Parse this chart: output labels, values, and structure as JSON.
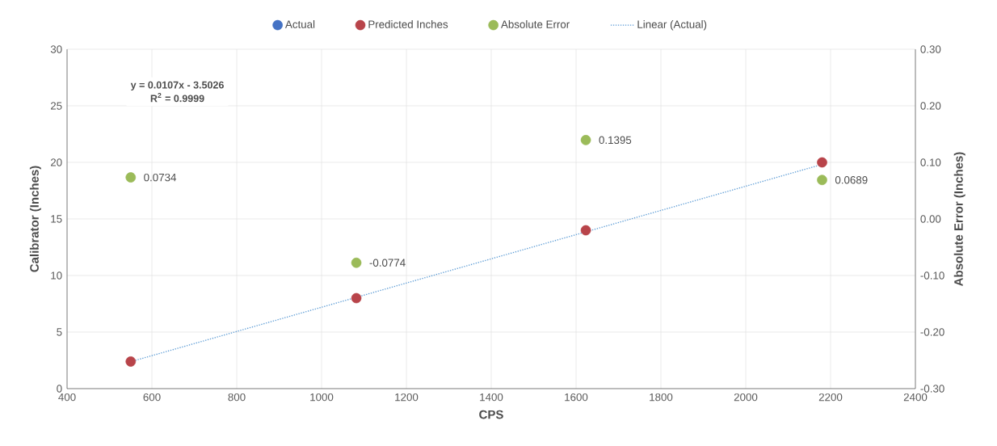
{
  "chart_data": {
    "type": "scatter",
    "xlabel": "CPS",
    "ylabel": "Calibrator (Inches)",
    "y2label": "Absolute Error (Inches)",
    "x": [
      550,
      1082,
      1623,
      2180
    ],
    "series": [
      {
        "name": "Actual",
        "color": "#4472c4",
        "marker": "circle",
        "values": [
          null,
          null,
          null,
          null
        ]
      },
      {
        "name": "Predicted Inches",
        "color": "#b8444a",
        "marker": "circle",
        "values": [
          2.4,
          8.0,
          14.0,
          20.0
        ]
      },
      {
        "name": "Absolute Error",
        "color": "#9bbb59",
        "marker": "circle",
        "axis": "y2",
        "values": [
          0.0734,
          -0.0774,
          0.1395,
          0.0689
        ],
        "value_labels": [
          "0.0734",
          "-0.0774",
          "0.1395",
          "0.0689"
        ]
      },
      {
        "name": "Linear (Actual)",
        "type": "line",
        "color": "#5b9bd5",
        "line_style": "dotted",
        "marker": "none",
        "x": [
          550,
          2180
        ],
        "values": [
          2.38,
          19.82
        ]
      }
    ],
    "annotations": [
      "y = 0.0107x - 3.5026",
      "R$^{2}$ = 0.9999"
    ],
    "xlim": [
      400,
      2400
    ],
    "xticks": [
      400,
      600,
      800,
      1000,
      1200,
      1400,
      1600,
      1800,
      2000,
      2200,
      2400
    ],
    "ylim": [
      0,
      30
    ],
    "yticks": [
      0,
      5,
      10,
      15,
      20,
      25,
      30
    ],
    "y2lim": [
      -0.3,
      0.3
    ],
    "y2ticks": [
      {
        "value": -0.3,
        "label": "-0.30"
      },
      {
        "value": -0.2,
        "label": "-0.20"
      },
      {
        "value": -0.1,
        "label": "-0.10"
      },
      {
        "value": 0,
        "label": "0.00"
      },
      {
        "value": 0.1,
        "label": "0.10"
      },
      {
        "value": 0.2,
        "label": "0.20"
      },
      {
        "value": 0.3,
        "label": "0.30"
      }
    ],
    "grid": true,
    "legend": "top"
  }
}
